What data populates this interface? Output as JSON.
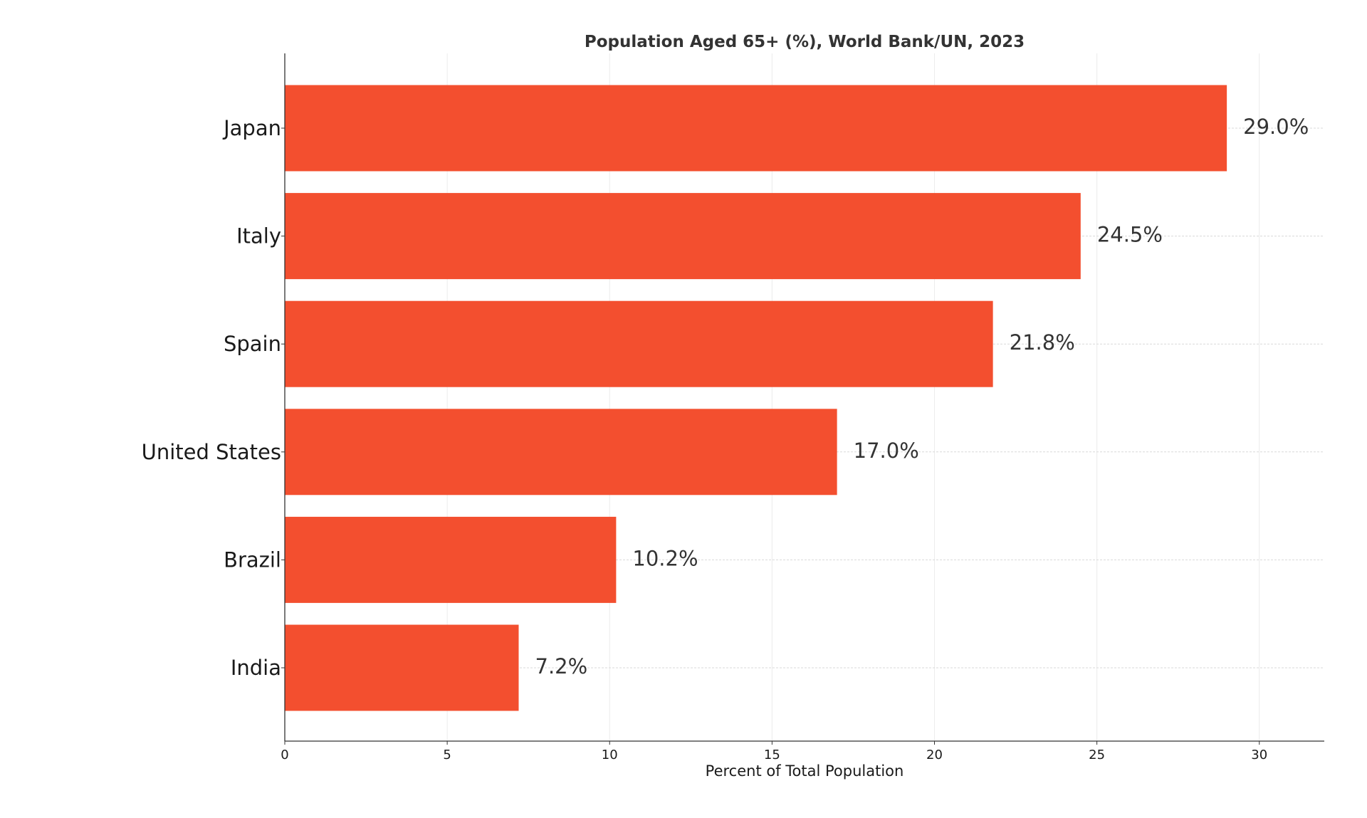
{
  "chart_data": {
    "type": "bar",
    "orientation": "horizontal",
    "title": "Population Aged 65+ (%), World Bank/UN, 2023",
    "xlabel": "Percent of Total Population",
    "ylabel": "",
    "categories": [
      "Japan",
      "Italy",
      "Spain",
      "United States",
      "Brazil",
      "India"
    ],
    "values": [
      29.0,
      24.5,
      21.8,
      17.0,
      10.2,
      7.2
    ],
    "value_labels": [
      "29.0%",
      "24.5%",
      "21.8%",
      "17.0%",
      "10.2%",
      "7.2%"
    ],
    "xlim": [
      0,
      32
    ],
    "xticks": [
      0,
      5,
      10,
      15,
      20,
      25,
      30
    ],
    "xtick_labels": [
      "0",
      "5",
      "10",
      "15",
      "20",
      "25",
      "30"
    ],
    "grid": true,
    "legend": "none",
    "colors": {
      "bar": "#f34f2f",
      "axis": "#333333",
      "grid": "#d9d9d9"
    }
  }
}
